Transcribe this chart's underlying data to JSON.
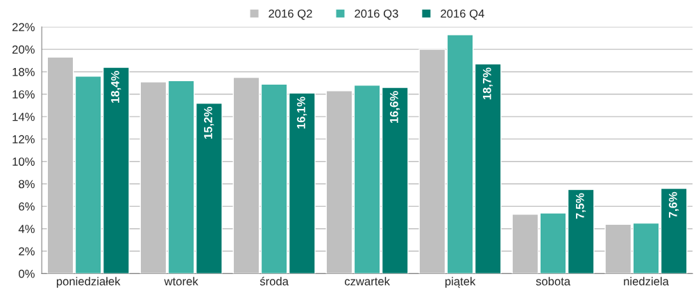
{
  "chart_data": {
    "type": "bar",
    "categories": [
      "poniedziałek",
      "wtorek",
      "środa",
      "czwartek",
      "piątek",
      "sobota",
      "niedziela"
    ],
    "series": [
      {
        "name": "2016 Q2",
        "color": "#bfbfbf",
        "values": [
          19.3,
          17.1,
          17.5,
          16.3,
          20.0,
          5.3,
          4.4
        ]
      },
      {
        "name": "2016 Q3",
        "color": "#40b3a6",
        "values": [
          17.6,
          17.2,
          16.9,
          16.8,
          21.3,
          5.4,
          4.5
        ]
      },
      {
        "name": "2016 Q4",
        "color": "#007a6e",
        "values": [
          18.4,
          15.2,
          16.1,
          16.6,
          18.7,
          7.5,
          7.6
        ],
        "value_labels": [
          "18,4%",
          "15,2%",
          "16,1%",
          "16,6%",
          "18,7%",
          "7,5%",
          "7,6%"
        ]
      }
    ],
    "ylim": [
      0,
      22
    ],
    "yticks": [
      {
        "value": 0,
        "label": "0%"
      },
      {
        "value": 2,
        "label": "2%"
      },
      {
        "value": 4,
        "label": "4%"
      },
      {
        "value": 6,
        "label": "6%"
      },
      {
        "value": 8,
        "label": "8%"
      },
      {
        "value": 10,
        "label": "10%"
      },
      {
        "value": 12,
        "label": "12%"
      },
      {
        "value": 14,
        "label": "14%"
      },
      {
        "value": 16,
        "label": "16%"
      },
      {
        "value": 18,
        "label": "18%"
      },
      {
        "value": 20,
        "label": "20%"
      },
      {
        "value": 22,
        "label": "22%"
      }
    ],
    "grid": "y",
    "legend": "top"
  }
}
